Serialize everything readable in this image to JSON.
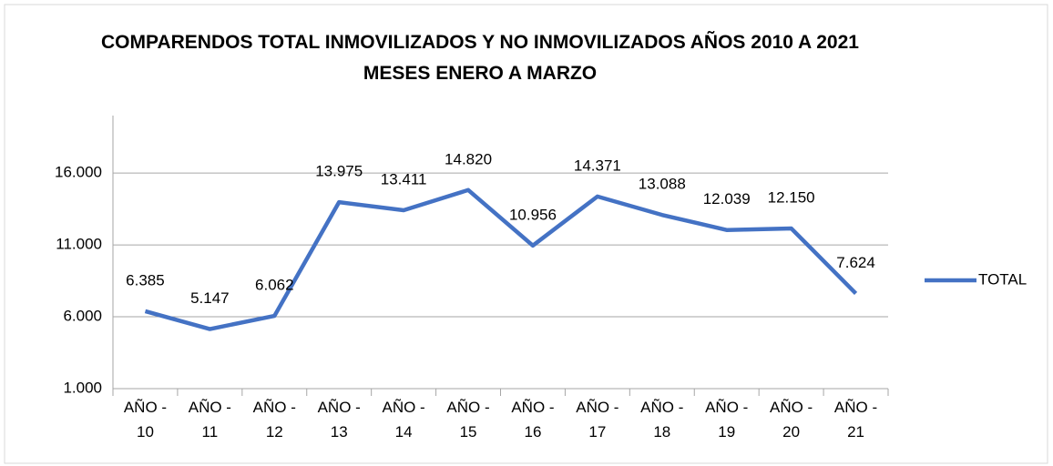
{
  "chart_data": {
    "type": "line",
    "title": "COMPARENDOS TOTAL INMOVILIZADOS Y NO INMOVILIZADOS AÑOS 2010 A 2021 MESES ENERO A MARZO",
    "categories": [
      "AÑO - 10",
      "AÑO - 11",
      "AÑO - 12",
      "AÑO - 13",
      "AÑO - 14",
      "AÑO - 15",
      "AÑO - 16",
      "AÑO - 17",
      "AÑO - 18",
      "AÑO - 19",
      "AÑO - 20",
      "AÑO - 21"
    ],
    "series": [
      {
        "name": "TOTAL",
        "color": "#4472c4",
        "values": [
          6385,
          5147,
          6062,
          13975,
          13411,
          14820,
          10956,
          14371,
          13088,
          12039,
          12150,
          7624
        ],
        "value_labels": [
          "6.385",
          "5.147",
          "6.062",
          "13.975",
          "13.411",
          "14.820",
          "10.956",
          "14.371",
          "13.088",
          "12.039",
          "12.150",
          "7.624"
        ]
      }
    ],
    "ylim": [
      1000,
      20000
    ],
    "yticks": [
      {
        "value": 1000,
        "label": "1.000"
      },
      {
        "value": 6000,
        "label": "6.000"
      },
      {
        "value": 11000,
        "label": "11.000"
      },
      {
        "value": 16000,
        "label": "16.000"
      }
    ],
    "grid": true,
    "legend": "right"
  }
}
